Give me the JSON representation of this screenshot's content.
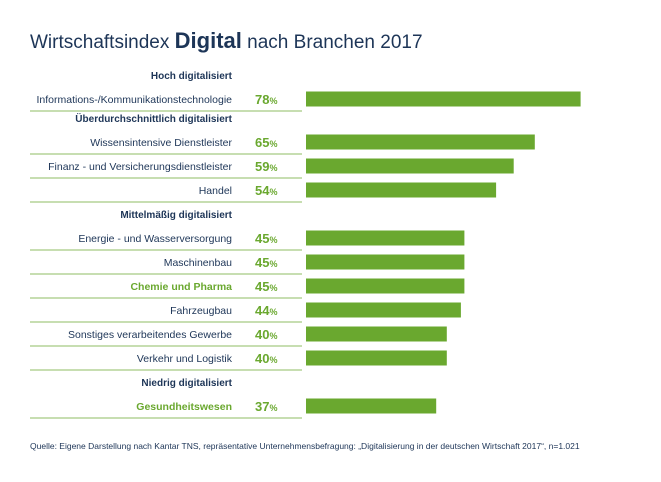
{
  "title": {
    "prefix": "Wirtschaftsindex",
    "highlight": "Digital",
    "suffix": "nach Branchen 2017"
  },
  "colors": {
    "bar": "#6aa82f",
    "text": "#1d3557",
    "value": "#6aa82f",
    "divider": "#6aa82f"
  },
  "unit": "%",
  "groups": [
    {
      "label": "Hoch digitalisiert"
    },
    {
      "label": "Überdurchschnittlich digitalisiert"
    },
    {
      "label": "Mittelmäßig digitalisiert"
    },
    {
      "label": "Niedrig digitalisiert"
    }
  ],
  "chart_data": {
    "type": "bar",
    "orientation": "horizontal",
    "title": "Wirtschaftsindex Digital nach Branchen 2017",
    "xlim": [
      0,
      100
    ],
    "grid": false,
    "categories": [
      "Informations-/Kommunikationstechnologie",
      "Wissensintensive Dienstleister",
      "Finanz - und Versicherungsdienstleister",
      "Handel",
      "Energie - und Wasserversorgung",
      "Maschinenbau",
      "Chemie und Pharma",
      "Fahrzeugbau",
      "Sonstiges verarbeitendes Gewerbe",
      "Verkehr und Logistik",
      "Gesundheitswesen"
    ],
    "values": [
      78,
      65,
      59,
      54,
      45,
      45,
      45,
      44,
      40,
      40,
      37
    ],
    "group_index": [
      0,
      1,
      1,
      1,
      2,
      2,
      2,
      2,
      2,
      2,
      3
    ],
    "highlighted": [
      false,
      false,
      false,
      false,
      false,
      false,
      true,
      false,
      false,
      false,
      true
    ]
  },
  "source": "Quelle: Eigene Darstellung nach Kantar TNS, repräsentative Unternehmensbefragung: „Digitalisierung in der deutschen Wirtschaft 2017“, n=1.021"
}
